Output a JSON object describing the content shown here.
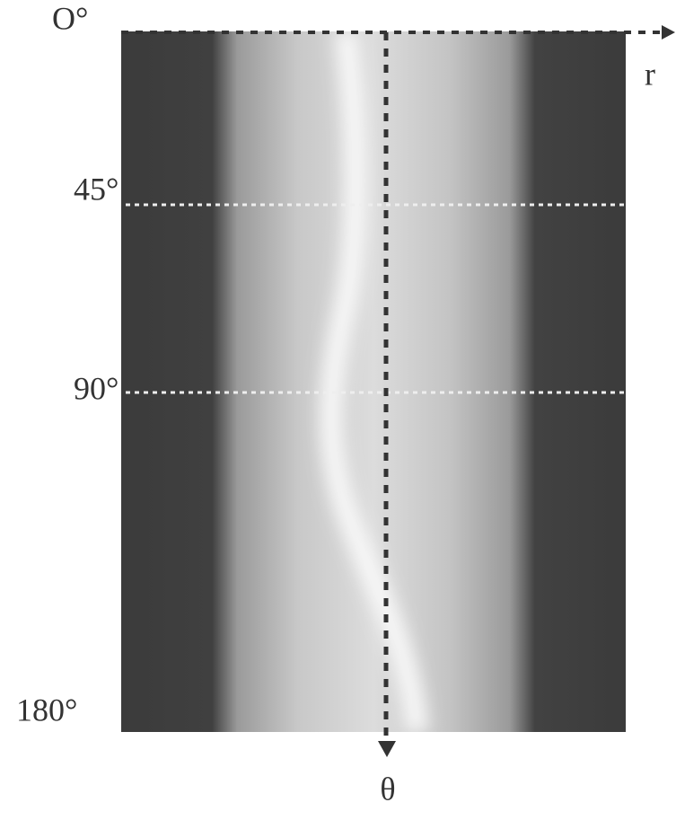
{
  "angle_labels": [
    "O°",
    "45°",
    "90°",
    "180°"
  ],
  "axis_labels": {
    "r": "r",
    "theta": "θ"
  }
}
